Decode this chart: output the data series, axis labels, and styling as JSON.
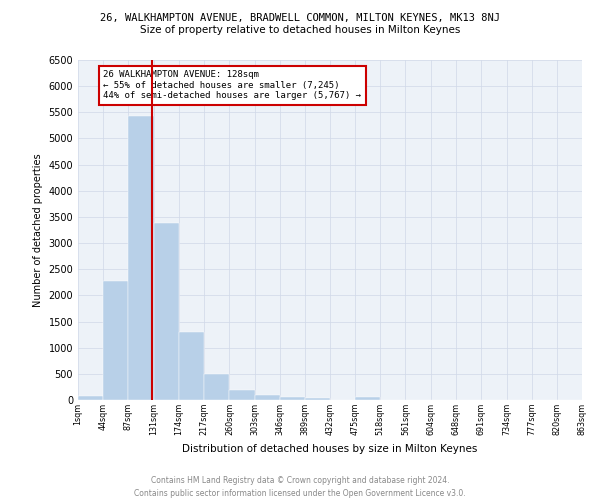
{
  "title_line1": "26, WALKHAMPTON AVENUE, BRADWELL COMMON, MILTON KEYNES, MK13 8NJ",
  "title_line2": "Size of property relative to detached houses in Milton Keynes",
  "xlabel": "Distribution of detached houses by size in Milton Keynes",
  "ylabel": "Number of detached properties",
  "footer": "Contains HM Land Registry data © Crown copyright and database right 2024.\nContains public sector information licensed under the Open Government Licence v3.0.",
  "bar_edges": [
    1,
    44,
    87,
    131,
    174,
    217,
    260,
    303,
    346,
    389,
    432,
    475,
    518,
    561,
    604,
    648,
    691,
    734,
    777,
    820,
    863
  ],
  "bar_heights": [
    75,
    2270,
    5420,
    3380,
    1300,
    490,
    200,
    100,
    65,
    30,
    0,
    60,
    0,
    0,
    0,
    0,
    0,
    0,
    0,
    0
  ],
  "bar_color": "#b8d0e8",
  "vline_x": 128,
  "vline_color": "#cc0000",
  "annotation_text": "26 WALKHAMPTON AVENUE: 128sqm\n← 55% of detached houses are smaller (7,245)\n44% of semi-detached houses are larger (5,767) →",
  "annotation_box_color": "#cc0000",
  "ylim": [
    0,
    6500
  ],
  "yticks": [
    0,
    500,
    1000,
    1500,
    2000,
    2500,
    3000,
    3500,
    4000,
    4500,
    5000,
    5500,
    6000,
    6500
  ],
  "tick_labels": [
    "1sqm",
    "44sqm",
    "87sqm",
    "131sqm",
    "174sqm",
    "217sqm",
    "260sqm",
    "303sqm",
    "346sqm",
    "389sqm",
    "432sqm",
    "475sqm",
    "518sqm",
    "561sqm",
    "604sqm",
    "648sqm",
    "691sqm",
    "734sqm",
    "777sqm",
    "820sqm",
    "863sqm"
  ],
  "grid_color": "#d0d8e8",
  "plot_bg_color": "#edf2f8"
}
